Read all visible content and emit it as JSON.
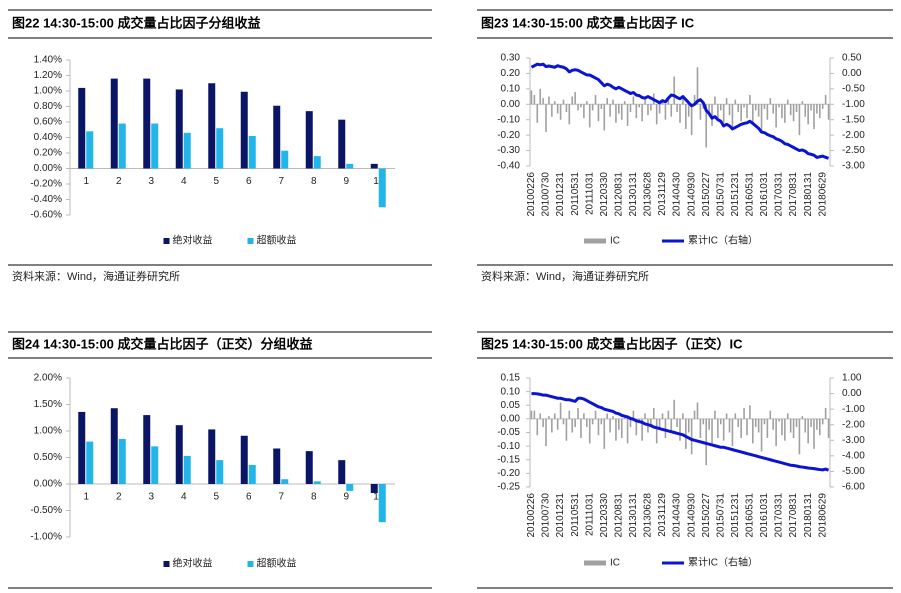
{
  "chart_data": [
    {
      "type": "bar",
      "title": "图22 14:30-15:00 成交量占比因子分组收益",
      "source": "资料来源：Wind，海通证券研究所",
      "categories": [
        "1",
        "2",
        "3",
        "4",
        "5",
        "6",
        "7",
        "8",
        "9",
        "10"
      ],
      "series": [
        {
          "name": "绝对收益",
          "color": "#0b1566",
          "values": [
            1.04,
            1.16,
            1.16,
            1.02,
            1.1,
            0.99,
            0.81,
            0.74,
            0.63,
            0.06
          ]
        },
        {
          "name": "超额收益",
          "color": "#22b5ea",
          "values": [
            0.48,
            0.58,
            0.58,
            0.46,
            0.52,
            0.42,
            0.23,
            0.16,
            0.06,
            -0.5
          ]
        }
      ],
      "ylim": [
        -0.6,
        1.4
      ],
      "yticks": [
        {
          "value": -0.6,
          "label": "-0.60%"
        },
        {
          "value": -0.4,
          "label": "-0.40%"
        },
        {
          "value": -0.2,
          "label": "-0.20%"
        },
        {
          "value": 0,
          "label": "0.00%"
        },
        {
          "value": 0.2,
          "label": "0.20%"
        },
        {
          "value": 0.4,
          "label": "0.40%"
        },
        {
          "value": 0.6,
          "label": "0.60%"
        },
        {
          "value": 0.8,
          "label": "0.80%"
        },
        {
          "value": 1.0,
          "label": "1.00%"
        },
        {
          "value": 1.2,
          "label": "1.20%"
        },
        {
          "value": 1.4,
          "label": "1.40%"
        }
      ]
    },
    {
      "type": "combo",
      "title": "图23 14:30-15:00 成交量占比因子 IC",
      "source": "资料来源：Wind，海通证券研究所",
      "categories": [
        "20100226",
        null,
        null,
        null,
        null,
        "20100730",
        null,
        null,
        null,
        null,
        "20101231",
        null,
        null,
        null,
        null,
        "20110531",
        null,
        null,
        null,
        null,
        "20111031",
        null,
        null,
        null,
        null,
        "20120330",
        null,
        null,
        null,
        null,
        "20120831",
        null,
        null,
        null,
        null,
        "20130131",
        null,
        null,
        null,
        null,
        "20130628",
        null,
        null,
        null,
        null,
        "20131129",
        null,
        null,
        null,
        null,
        "20140430",
        null,
        null,
        null,
        null,
        "20140930",
        null,
        null,
        null,
        null,
        "20150227",
        null,
        null,
        null,
        null,
        "20150731",
        null,
        null,
        null,
        null,
        "20151231",
        null,
        null,
        null,
        null,
        "20160531",
        null,
        null,
        null,
        null,
        "20161031",
        null,
        null,
        null,
        null,
        "20170331",
        null,
        null,
        null,
        null,
        "20170831",
        null,
        null,
        null,
        null,
        "20180131",
        null,
        null,
        null,
        null,
        "20180629",
        null,
        null
      ],
      "series": [
        {
          "name": "IC",
          "color": "#a0a0a0",
          "values": [
            0.09,
            0.06,
            -0.12,
            0.1,
            0.04,
            -0.18,
            0.05,
            -0.08,
            0.02,
            -0.06,
            -0.1,
            0.03,
            -0.05,
            -0.13,
            0.05,
            0.08,
            -0.04,
            -0.02,
            -0.09,
            0.02,
            -0.15,
            -0.04,
            0.06,
            -0.11,
            -0.03,
            -0.17,
            0.04,
            -0.08,
            0.03,
            -0.12,
            -0.06,
            -0.1,
            0.02,
            -0.14,
            -0.05,
            0.05,
            -0.09,
            -0.02,
            -0.11,
            0.03,
            -0.07,
            -0.04,
            0.07,
            -0.13,
            -0.06,
            0.03,
            -0.1,
            0.05,
            -0.08,
            0.18,
            -0.05,
            -0.12,
            0.04,
            -0.16,
            -0.08,
            -0.2,
            0.06,
            0.24,
            -0.1,
            -0.03,
            -0.28,
            -0.06,
            -0.14,
            0.05,
            -0.1,
            -0.04,
            -0.12,
            0.04,
            -0.07,
            -0.16,
            0.03,
            -0.05,
            -0.11,
            -0.02,
            -0.09,
            0.06,
            -0.13,
            -0.04,
            -0.08,
            -0.18,
            -0.03,
            -0.1,
            0.04,
            -0.06,
            -0.15,
            -0.02,
            -0.09,
            -0.12,
            0.03,
            -0.07,
            -0.11,
            -0.05,
            -0.2,
            0.02,
            -0.08,
            -0.13,
            -0.04,
            -0.16,
            -0.06,
            -0.09,
            -0.03,
            0.06,
            -0.1
          ]
        },
        {
          "name": "累计IC（右轴）",
          "color": "#0a14d2",
          "axis": "y2",
          "values": [
            0.2,
            0.25,
            0.3,
            0.28,
            0.3,
            0.22,
            0.24,
            0.22,
            0.2,
            0.25,
            0.22,
            0.2,
            0.15,
            0.05,
            0.1,
            0.12,
            0.1,
            0.05,
            0,
            -0.05,
            -0.05,
            -0.1,
            -0.15,
            -0.2,
            -0.3,
            -0.4,
            -0.35,
            -0.38,
            -0.45,
            -0.5,
            -0.45,
            -0.5,
            -0.55,
            -0.6,
            -0.65,
            -0.62,
            -0.7,
            -0.72,
            -0.78,
            -0.8,
            -0.75,
            -0.8,
            -0.85,
            -0.9,
            -0.95,
            -0.88,
            -0.92,
            -0.8,
            -0.7,
            -0.72,
            -0.78,
            -0.82,
            -0.75,
            -0.85,
            -0.95,
            -1.05,
            -1.0,
            -0.9,
            -0.85,
            -0.95,
            -1.2,
            -1.3,
            -1.45,
            -1.4,
            -1.5,
            -1.55,
            -1.7,
            -1.65,
            -1.7,
            -1.8,
            -1.75,
            -1.7,
            -1.65,
            -1.62,
            -1.6,
            -1.55,
            -1.62,
            -1.7,
            -1.78,
            -1.9,
            -1.92,
            -1.98,
            -2.02,
            -2.05,
            -2.12,
            -2.15,
            -2.2,
            -2.28,
            -2.3,
            -2.35,
            -2.4,
            -2.45,
            -2.5,
            -2.48,
            -2.52,
            -2.6,
            -2.62,
            -2.65,
            -2.72,
            -2.7,
            -2.68,
            -2.72,
            -2.75
          ]
        }
      ],
      "ylim": [
        -0.4,
        0.3
      ],
      "yticks": [
        {
          "value": -0.4,
          "label": "-0.40"
        },
        {
          "value": -0.3,
          "label": "-0.30"
        },
        {
          "value": -0.2,
          "label": "-0.20"
        },
        {
          "value": -0.1,
          "label": "-0.10"
        },
        {
          "value": 0,
          "label": "0.00"
        },
        {
          "value": 0.1,
          "label": "0.10"
        },
        {
          "value": 0.2,
          "label": "0.20"
        },
        {
          "value": 0.3,
          "label": "0.30"
        }
      ],
      "y2lim": [
        -3,
        0.5
      ],
      "y2ticks": [
        {
          "value": -3,
          "label": "-3.00"
        },
        {
          "value": -2.5,
          "label": "-2.50"
        },
        {
          "value": -2,
          "label": "-2.00"
        },
        {
          "value": -1.5,
          "label": "-1.50"
        },
        {
          "value": -1,
          "label": "-1.00"
        },
        {
          "value": -0.5,
          "label": "-0.50"
        },
        {
          "value": 0,
          "label": "0.00"
        },
        {
          "value": 0.5,
          "label": "0.50"
        }
      ]
    },
    {
      "type": "bar",
      "title": "图24 14:30-15:00 成交量占比因子（正交）分组收益",
      "categories": [
        "1",
        "2",
        "3",
        "4",
        "5",
        "6",
        "7",
        "8",
        "9",
        "10"
      ],
      "series": [
        {
          "name": "绝对收益",
          "color": "#0b1566",
          "values": [
            1.36,
            1.43,
            1.3,
            1.11,
            1.03,
            0.91,
            0.67,
            0.62,
            0.45,
            -0.17
          ]
        },
        {
          "name": "超额收益",
          "color": "#22b5ea",
          "values": [
            0.8,
            0.85,
            0.71,
            0.53,
            0.45,
            0.36,
            0.09,
            0.05,
            -0.13,
            -0.72
          ]
        }
      ],
      "ylim": [
        -1,
        2
      ],
      "yticks": [
        {
          "value": -1,
          "label": "-1.00%"
        },
        {
          "value": -0.5,
          "label": "-0.50%"
        },
        {
          "value": 0,
          "label": "0.00%"
        },
        {
          "value": 0.5,
          "label": "0.50%"
        },
        {
          "value": 1,
          "label": "1.00%"
        },
        {
          "value": 1.5,
          "label": "1.50%"
        },
        {
          "value": 2,
          "label": "2.00%"
        }
      ]
    },
    {
      "type": "combo",
      "title": "图25 14:30-15:00 成交量占比因子（正交）IC",
      "categories": [
        "20100226",
        null,
        null,
        null,
        null,
        "20100730",
        null,
        null,
        null,
        null,
        "20101231",
        null,
        null,
        null,
        null,
        "20110531",
        null,
        null,
        null,
        null,
        "20111031",
        null,
        null,
        null,
        null,
        "20120330",
        null,
        null,
        null,
        null,
        "20120831",
        null,
        null,
        null,
        null,
        "20130131",
        null,
        null,
        null,
        null,
        "20130628",
        null,
        null,
        null,
        null,
        "20131129",
        null,
        null,
        null,
        null,
        "20140430",
        null,
        null,
        null,
        null,
        "20140930",
        null,
        null,
        null,
        null,
        "20150227",
        null,
        null,
        null,
        null,
        "20150731",
        null,
        null,
        null,
        null,
        "20151231",
        null,
        null,
        null,
        null,
        "20160531",
        null,
        null,
        null,
        null,
        "20161031",
        null,
        null,
        null,
        null,
        "20170331",
        null,
        null,
        null,
        null,
        "20170831",
        null,
        null,
        null,
        null,
        "20180131",
        null,
        null,
        null,
        null,
        "20180629",
        null,
        null
      ],
      "series": [
        {
          "name": "IC",
          "color": "#a0a0a0",
          "values": [
            0.03,
            0.03,
            -0.06,
            0.02,
            -0.03,
            -0.1,
            0.01,
            -0.05,
            0.02,
            -0.04,
            0.06,
            -0.02,
            -0.08,
            0.03,
            -0.05,
            -0.03,
            0.04,
            -0.07,
            0.02,
            -0.03,
            -0.09,
            -0.02,
            0.03,
            -0.06,
            -0.02,
            -0.11,
            0.02,
            -0.05,
            0.01,
            -0.08,
            -0.04,
            -0.07,
            0.01,
            -0.09,
            -0.03,
            0.03,
            -0.06,
            -0.01,
            -0.08,
            0.02,
            -0.05,
            -0.02,
            0.04,
            -0.09,
            -0.04,
            0.02,
            -0.07,
            0.03,
            -0.05,
            0.07,
            -0.03,
            -0.08,
            0.02,
            -0.11,
            -0.05,
            -0.13,
            0.03,
            0.06,
            -0.07,
            -0.02,
            -0.17,
            -0.04,
            -0.09,
            0.03,
            -0.07,
            -0.02,
            -0.08,
            0.02,
            -0.05,
            -0.1,
            0.02,
            -0.03,
            -0.07,
            0.04,
            -0.06,
            0.05,
            -0.09,
            -0.03,
            -0.05,
            -0.12,
            -0.02,
            -0.07,
            0.03,
            -0.04,
            -0.1,
            -0.01,
            -0.06,
            -0.08,
            0.02,
            -0.05,
            -0.07,
            -0.03,
            -0.13,
            0.01,
            -0.05,
            -0.09,
            -0.03,
            -0.11,
            -0.04,
            -0.06,
            -0.02,
            0.04,
            -0.07
          ]
        },
        {
          "name": "累计IC（右轴）",
          "color": "#0a14d2",
          "axis": "y2",
          "values": [
            0.0,
            0.0,
            -0.02,
            -0.05,
            -0.1,
            -0.1,
            -0.15,
            -0.2,
            -0.25,
            -0.3,
            -0.3,
            -0.35,
            -0.4,
            -0.4,
            -0.45,
            -0.5,
            -0.3,
            -0.3,
            -0.35,
            -0.45,
            -0.55,
            -0.65,
            -0.75,
            -0.85,
            -0.9,
            -1.0,
            -1.05,
            -1.1,
            -1.15,
            -1.25,
            -1.3,
            -1.4,
            -1.45,
            -1.5,
            -1.6,
            -1.65,
            -1.75,
            -1.8,
            -1.85,
            -1.95,
            -2.0,
            -2.05,
            -2.15,
            -2.2,
            -2.25,
            -2.3,
            -2.35,
            -2.4,
            -2.45,
            -2.5,
            -2.55,
            -2.6,
            -2.65,
            -2.75,
            -2.85,
            -2.95,
            -3.0,
            -3.05,
            -3.1,
            -3.15,
            -3.2,
            -3.25,
            -3.3,
            -3.35,
            -3.4,
            -3.45,
            -3.45,
            -3.5,
            -3.55,
            -3.6,
            -3.65,
            -3.7,
            -3.75,
            -3.8,
            -3.85,
            -3.9,
            -3.95,
            -4.0,
            -4.05,
            -4.1,
            -4.15,
            -4.2,
            -4.25,
            -4.3,
            -4.35,
            -4.4,
            -4.45,
            -4.5,
            -4.55,
            -4.6,
            -4.62,
            -4.65,
            -4.7,
            -4.72,
            -4.75,
            -4.78,
            -4.8,
            -4.82,
            -4.85,
            -4.88,
            -4.9,
            -4.85,
            -4.92
          ]
        }
      ],
      "ylim": [
        -0.25,
        0.15
      ],
      "yticks": [
        {
          "value": -0.25,
          "label": "-0.25"
        },
        {
          "value": -0.2,
          "label": "-0.20"
        },
        {
          "value": -0.15,
          "label": "-0.15"
        },
        {
          "value": -0.1,
          "label": "-0.10"
        },
        {
          "value": -0.05,
          "label": "-0.05"
        },
        {
          "value": 0,
          "label": "0.00"
        },
        {
          "value": 0.05,
          "label": "0.05"
        },
        {
          "value": 0.1,
          "label": "0.10"
        },
        {
          "value": 0.15,
          "label": "0.15"
        }
      ],
      "y2lim": [
        -6,
        1
      ],
      "y2ticks": [
        {
          "value": -6,
          "label": "-6.00"
        },
        {
          "value": -5,
          "label": "-5.00"
        },
        {
          "value": -4,
          "label": "-4.00"
        },
        {
          "value": -3,
          "label": "-3.00"
        },
        {
          "value": -2,
          "label": "-2.00"
        },
        {
          "value": -1,
          "label": "-1.00"
        },
        {
          "value": 0,
          "label": "0.00"
        },
        {
          "value": 1,
          "label": "1.00"
        }
      ]
    }
  ]
}
